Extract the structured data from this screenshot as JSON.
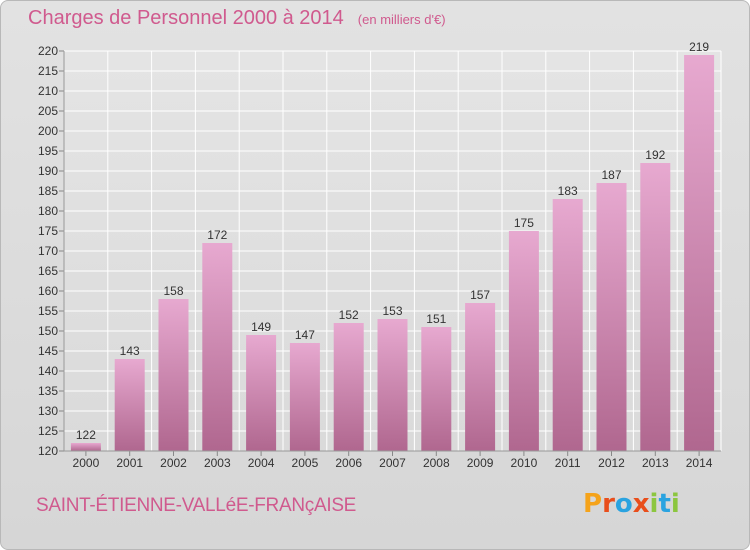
{
  "header": {
    "title": "Charges de Personnel 2000 à 2014",
    "unit": "(en milliers d'€)"
  },
  "footer": {
    "city": "SAINT-ÉTIENNE-VALLéE-FRANçAISE",
    "brand_letters": [
      "P",
      "r",
      "o",
      "x",
      "i",
      "t",
      "i"
    ],
    "brand_colors": [
      "#f5a31a",
      "#e94e1b",
      "#2aa3e0",
      "#e94e1b",
      "#8cc63f",
      "#2aa3e0",
      "#8cc63f"
    ]
  },
  "colors": {
    "bar_top": "#e7a9d0",
    "bar_bottom": "#b0678f",
    "text": "#d05a8e",
    "axis_text": "#333333"
  },
  "chart_data": {
    "type": "bar",
    "title": "Charges de Personnel 2000 à 2014",
    "subtitle": "(en milliers d'€)",
    "categories": [
      "2000",
      "2001",
      "2002",
      "2003",
      "2004",
      "2005",
      "2006",
      "2007",
      "2008",
      "2009",
      "2010",
      "2011",
      "2012",
      "2013",
      "2014"
    ],
    "values": [
      122,
      143,
      158,
      172,
      149,
      147,
      152,
      153,
      151,
      157,
      175,
      183,
      187,
      192,
      219
    ],
    "ylim": [
      120,
      220
    ],
    "ytick_step": 5,
    "grid": true,
    "legend": "none"
  }
}
